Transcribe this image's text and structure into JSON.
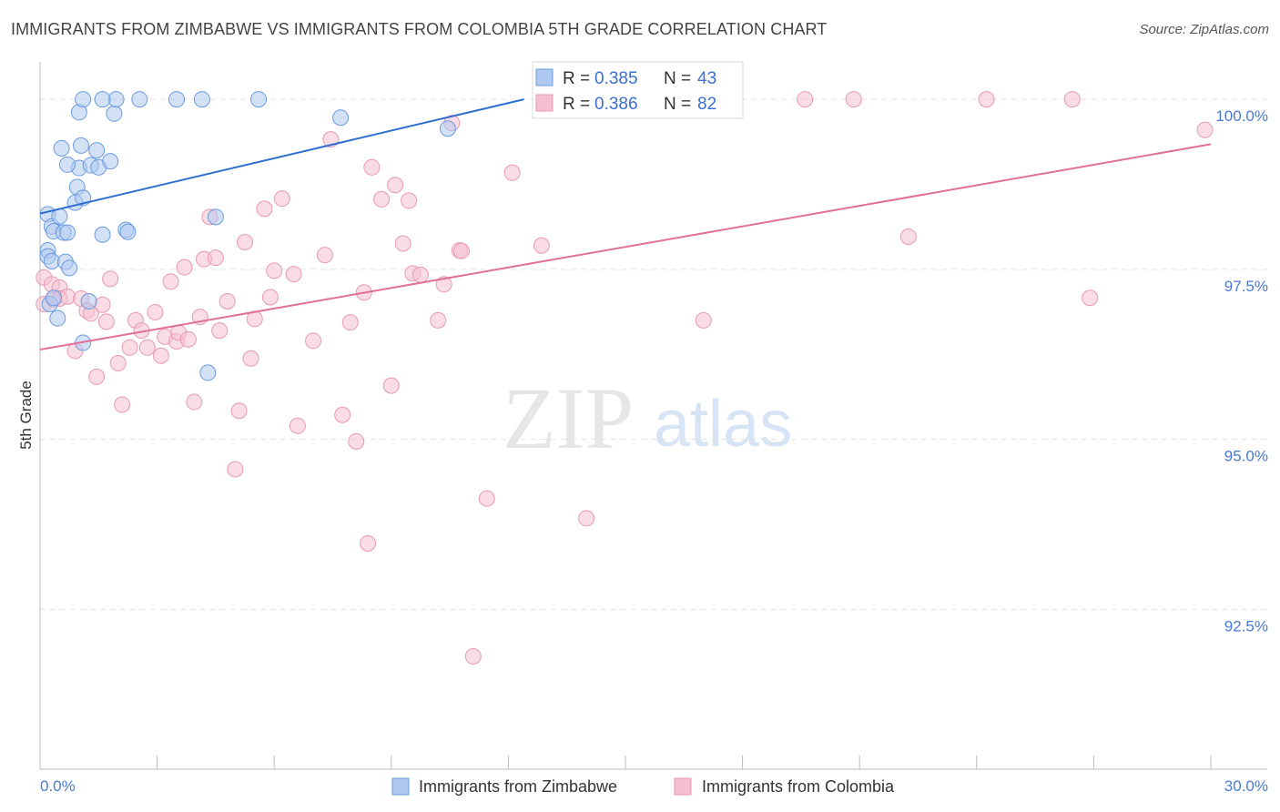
{
  "title": "IMMIGRANTS FROM ZIMBABWE VS IMMIGRANTS FROM COLOMBIA 5TH GRADE CORRELATION CHART",
  "source": "Source: ZipAtlas.com",
  "watermark": {
    "zip": "ZIP",
    "atlas": "atlas"
  },
  "colors": {
    "blue_fill": "#aec8f0",
    "blue_stroke": "#6b9be0",
    "blue_line": "#2f6fd0",
    "pink_fill": "#f6bfd0",
    "pink_stroke": "#e79ab4",
    "pink_line": "#e07095",
    "tick_text": "#4a7bd0",
    "grid": "#e2e2e2"
  },
  "legend": {
    "rows": [
      {
        "r_label": "R =",
        "r_value": "0.385",
        "n_label": "N =",
        "n_value": "43",
        "series": "blue"
      },
      {
        "r_label": "R =",
        "r_value": "0.386",
        "n_label": "N =",
        "n_value": "82",
        "series": "pink"
      }
    ]
  },
  "bottom_legend": [
    "Immigrants from Zimbabwe",
    "Immigrants from Colombia"
  ],
  "chart_data": {
    "type": "scatter",
    "title": "IMMIGRANTS FROM ZIMBABWE VS IMMIGRANTS FROM COLOMBIA 5TH GRADE CORRELATION CHART",
    "xlabel": "",
    "ylabel": "5th Grade",
    "xlim": [
      0,
      30
    ],
    "ylim": [
      90.15,
      100.55
    ],
    "x_tick_labels": [
      {
        "value": 0,
        "label": "0.0%"
      },
      {
        "value": 30,
        "label": "30.0%"
      }
    ],
    "y_tick_labels": [
      {
        "value": 100.0,
        "label": "100.0%"
      },
      {
        "value": 97.5,
        "label": "97.5%"
      },
      {
        "value": 95.0,
        "label": "95.0%"
      },
      {
        "value": 92.5,
        "label": "92.5%"
      }
    ],
    "series": [
      {
        "name": "Immigrants from Zimbabwe",
        "color": "blue",
        "r": 0.385,
        "n": 43,
        "trend": {
          "x": [
            0,
            12.4
          ],
          "y": [
            98.32,
            100.0
          ]
        },
        "points": [
          [
            0.2,
            98.31
          ],
          [
            0.3,
            98.13
          ],
          [
            0.35,
            98.06
          ],
          [
            0.2,
            97.78
          ],
          [
            0.2,
            97.69
          ],
          [
            0.25,
            96.99
          ],
          [
            0.3,
            97.62
          ],
          [
            0.35,
            97.08
          ],
          [
            0.45,
            96.78
          ],
          [
            0.5,
            98.28
          ],
          [
            0.6,
            98.04
          ],
          [
            0.65,
            97.61
          ],
          [
            0.7,
            98.04
          ],
          [
            0.75,
            97.52
          ],
          [
            0.9,
            98.48
          ],
          [
            0.95,
            98.71
          ],
          [
            1.0,
            98.99
          ],
          [
            1.05,
            99.32
          ],
          [
            1.1,
            98.55
          ],
          [
            1.25,
            97.03
          ],
          [
            0.55,
            99.28
          ],
          [
            0.7,
            99.04
          ],
          [
            1.3,
            99.03
          ],
          [
            1.45,
            99.25
          ],
          [
            1.5,
            99.0
          ],
          [
            1.6,
            98.01
          ],
          [
            1.8,
            99.09
          ],
          [
            2.2,
            98.08
          ],
          [
            2.25,
            98.05
          ],
          [
            1.1,
            96.42
          ],
          [
            1.0,
            99.81
          ],
          [
            1.9,
            99.79
          ],
          [
            1.95,
            100.0
          ],
          [
            2.55,
            100.0
          ],
          [
            3.5,
            100.0
          ],
          [
            4.15,
            100.0
          ],
          [
            5.6,
            100.0
          ],
          [
            1.1,
            100.0
          ],
          [
            1.6,
            100.0
          ],
          [
            7.7,
            99.73
          ],
          [
            10.45,
            99.57
          ],
          [
            4.5,
            98.27
          ],
          [
            4.3,
            95.98
          ]
        ]
      },
      {
        "name": "Immigrants from Colombia",
        "color": "pink",
        "r": 0.386,
        "n": 82,
        "trend": {
          "x": [
            0,
            30
          ],
          "y": [
            96.32,
            99.34
          ]
        },
        "points": [
          [
            0.1,
            97.38
          ],
          [
            0.1,
            96.99
          ],
          [
            0.3,
            97.28
          ],
          [
            0.35,
            97.06
          ],
          [
            0.5,
            97.23
          ],
          [
            0.5,
            97.07
          ],
          [
            0.7,
            97.1
          ],
          [
            0.9,
            96.3
          ],
          [
            1.05,
            97.07
          ],
          [
            1.2,
            96.89
          ],
          [
            1.3,
            96.85
          ],
          [
            1.45,
            95.92
          ],
          [
            1.6,
            96.98
          ],
          [
            1.7,
            96.73
          ],
          [
            1.8,
            97.36
          ],
          [
            2.0,
            96.12
          ],
          [
            2.1,
            95.51
          ],
          [
            2.3,
            96.35
          ],
          [
            2.45,
            96.75
          ],
          [
            2.6,
            96.6
          ],
          [
            2.75,
            96.35
          ],
          [
            2.95,
            96.87
          ],
          [
            3.1,
            96.23
          ],
          [
            3.2,
            96.51
          ],
          [
            3.35,
            97.32
          ],
          [
            3.5,
            96.44
          ],
          [
            3.55,
            96.57
          ],
          [
            3.7,
            97.53
          ],
          [
            3.8,
            96.47
          ],
          [
            3.95,
            95.55
          ],
          [
            4.1,
            96.8
          ],
          [
            4.2,
            97.65
          ],
          [
            4.35,
            98.27
          ],
          [
            4.5,
            97.67
          ],
          [
            4.6,
            96.6
          ],
          [
            4.8,
            97.03
          ],
          [
            5.0,
            94.56
          ],
          [
            5.1,
            95.42
          ],
          [
            5.25,
            97.9
          ],
          [
            5.4,
            96.19
          ],
          [
            5.5,
            96.77
          ],
          [
            5.75,
            98.39
          ],
          [
            5.9,
            97.09
          ],
          [
            6.0,
            97.48
          ],
          [
            6.2,
            98.54
          ],
          [
            6.5,
            97.43
          ],
          [
            6.6,
            95.2
          ],
          [
            7.0,
            96.45
          ],
          [
            7.3,
            97.71
          ],
          [
            7.45,
            99.41
          ],
          [
            7.75,
            95.36
          ],
          [
            7.95,
            96.72
          ],
          [
            8.1,
            94.97
          ],
          [
            8.3,
            97.16
          ],
          [
            8.4,
            93.47
          ],
          [
            8.5,
            99.0
          ],
          [
            8.75,
            98.53
          ],
          [
            9.0,
            95.79
          ],
          [
            9.1,
            98.74
          ],
          [
            9.3,
            97.88
          ],
          [
            9.45,
            98.51
          ],
          [
            9.55,
            97.44
          ],
          [
            9.75,
            97.42
          ],
          [
            10.2,
            96.75
          ],
          [
            10.35,
            97.28
          ],
          [
            10.55,
            99.65
          ],
          [
            10.75,
            97.78
          ],
          [
            10.8,
            97.77
          ],
          [
            11.1,
            91.81
          ],
          [
            11.45,
            94.13
          ],
          [
            12.1,
            98.92
          ],
          [
            12.85,
            97.85
          ],
          [
            13.9,
            100.0
          ],
          [
            14.0,
            93.84
          ],
          [
            17.0,
            96.75
          ],
          [
            19.6,
            100.0
          ],
          [
            20.85,
            100.0
          ],
          [
            22.25,
            97.98
          ],
          [
            24.25,
            100.0
          ],
          [
            26.45,
            100.0
          ],
          [
            26.9,
            97.08
          ],
          [
            29.85,
            99.55
          ]
        ]
      }
    ]
  }
}
